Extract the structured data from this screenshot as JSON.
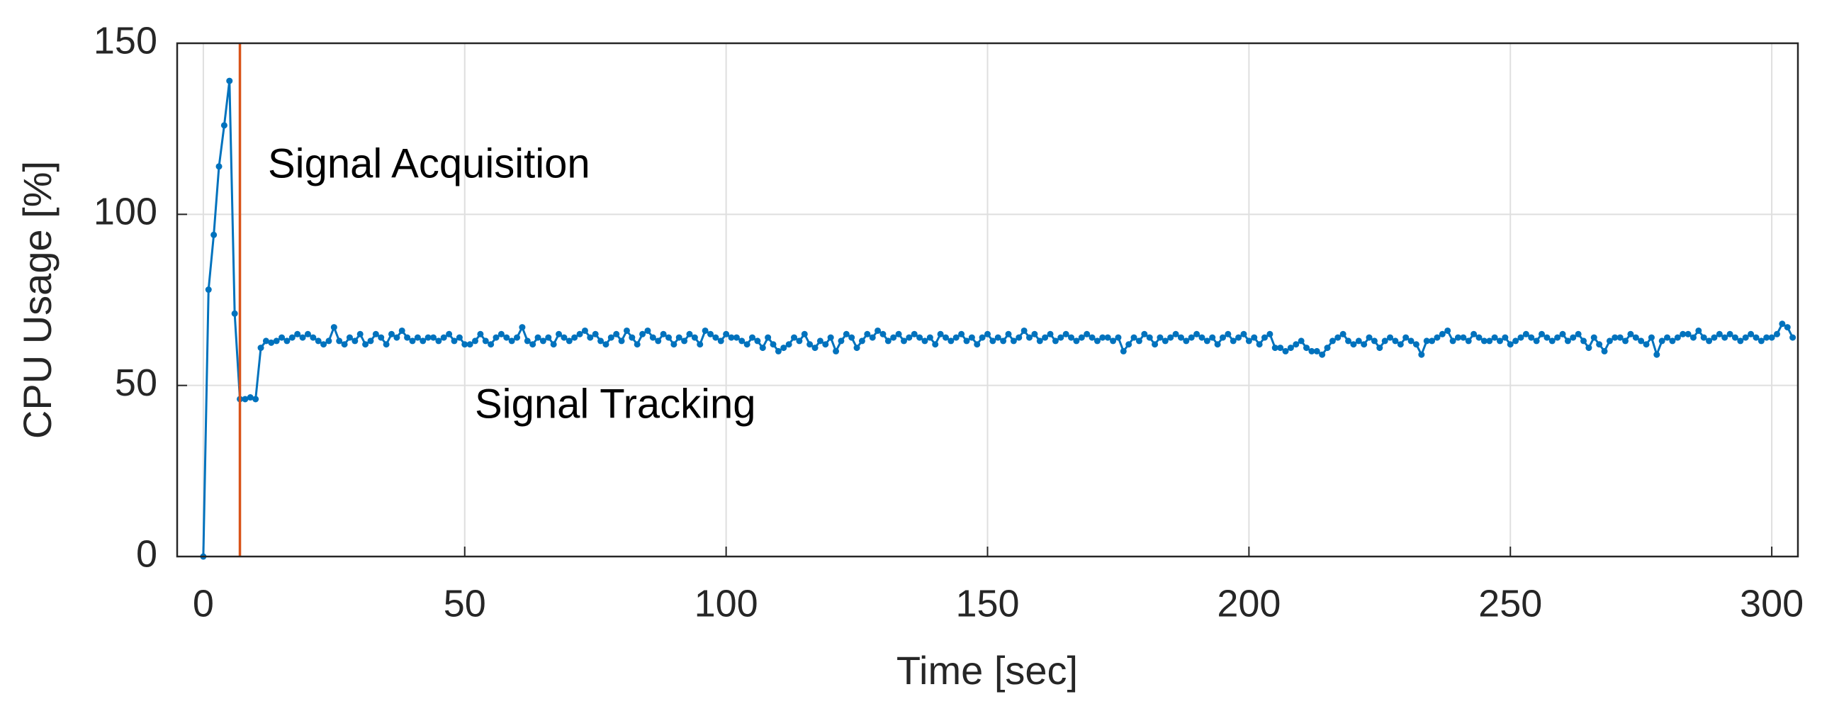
{
  "chart_data": {
    "type": "line",
    "xlabel": "Time [sec]",
    "ylabel": "CPU Usage [%]",
    "xlim": [
      -5,
      305
    ],
    "ylim": [
      0,
      150
    ],
    "xticks": [
      0,
      50,
      100,
      150,
      200,
      250,
      300
    ],
    "yticks": [
      0,
      50,
      100,
      150
    ],
    "grid": true,
    "vline": {
      "x": 7,
      "color": "#d95319"
    },
    "annotations": [
      {
        "text": "Signal Acquisition"
      },
      {
        "text": "Signal Tracking"
      }
    ],
    "series": [
      {
        "color": "#0072bd",
        "x": [
          0,
          1,
          2,
          3,
          4,
          5,
          6,
          7,
          8,
          9,
          10,
          11,
          12,
          13,
          14,
          15,
          16,
          17,
          18,
          19,
          20,
          21,
          22,
          23,
          24,
          25,
          26,
          27,
          28,
          29,
          30,
          31,
          32,
          33,
          34,
          35,
          36,
          37,
          38,
          39,
          40,
          41,
          42,
          43,
          44,
          45,
          46,
          47,
          48,
          49,
          50,
          51,
          52,
          53,
          54,
          55,
          56,
          57,
          58,
          59,
          60,
          61,
          62,
          63,
          64,
          65,
          66,
          67,
          68,
          69,
          70,
          71,
          72,
          73,
          74,
          75,
          76,
          77,
          78,
          79,
          80,
          81,
          82,
          83,
          84,
          85,
          86,
          87,
          88,
          89,
          90,
          91,
          92,
          93,
          94,
          95,
          96,
          97,
          98,
          99,
          100,
          101,
          102,
          103,
          104,
          105,
          106,
          107,
          108,
          109,
          110,
          111,
          112,
          113,
          114,
          115,
          116,
          117,
          118,
          119,
          120,
          121,
          122,
          123,
          124,
          125,
          126,
          127,
          128,
          129,
          130,
          131,
          132,
          133,
          134,
          135,
          136,
          137,
          138,
          139,
          140,
          141,
          142,
          143,
          144,
          145,
          146,
          147,
          148,
          149,
          150,
          151,
          152,
          153,
          154,
          155,
          156,
          157,
          158,
          159,
          160,
          161,
          162,
          163,
          164,
          165,
          166,
          167,
          168,
          169,
          170,
          171,
          172,
          173,
          174,
          175,
          176,
          177,
          178,
          179,
          180,
          181,
          182,
          183,
          184,
          185,
          186,
          187,
          188,
          189,
          190,
          191,
          192,
          193,
          194,
          195,
          196,
          197,
          198,
          199,
          200,
          201,
          202,
          203,
          204,
          205,
          206,
          207,
          208,
          209,
          210,
          211,
          212,
          213,
          214,
          215,
          216,
          217,
          218,
          219,
          220,
          221,
          222,
          223,
          224,
          225,
          226,
          227,
          228,
          229,
          230,
          231,
          232,
          233,
          234,
          235,
          236,
          237,
          238,
          239,
          240,
          241,
          242,
          243,
          244,
          245,
          246,
          247,
          248,
          249,
          250,
          251,
          252,
          253,
          254,
          255,
          256,
          257,
          258,
          259,
          260,
          261,
          262,
          263,
          264,
          265,
          266,
          267,
          268,
          269,
          270,
          271,
          272,
          273,
          274,
          275,
          276,
          277,
          278,
          279,
          280,
          281,
          282,
          283,
          284,
          285,
          286,
          287,
          288,
          289,
          290,
          291,
          292,
          293,
          294,
          295,
          296,
          297,
          298,
          299,
          300,
          301,
          302,
          303,
          304
        ],
        "values": [
          0,
          78,
          94,
          114,
          126,
          139,
          71,
          46,
          46,
          46.5,
          46,
          61,
          63,
          62.5,
          63,
          64,
          63,
          64,
          65,
          64,
          65,
          64,
          63,
          62,
          63,
          67,
          63,
          62,
          64,
          63,
          65,
          62,
          63,
          65,
          64,
          62,
          65,
          64,
          66,
          64,
          63,
          64,
          63,
          64,
          64,
          63,
          64,
          65,
          63,
          64,
          62,
          62,
          63,
          65,
          63,
          62,
          64,
          65,
          64,
          63,
          64,
          67,
          63,
          62,
          64,
          63,
          64,
          62,
          65,
          64,
          63,
          64,
          65,
          66,
          64,
          65,
          63,
          62,
          64,
          65,
          63,
          66,
          64,
          62,
          65,
          66,
          64,
          63,
          65,
          64,
          62,
          64,
          63,
          65,
          64,
          62,
          66,
          65,
          64,
          63,
          65,
          64,
          64,
          63,
          62,
          64,
          63,
          61,
          64,
          62,
          60,
          61,
          62,
          64,
          63,
          65,
          62,
          61,
          63,
          62,
          64,
          60,
          63,
          65,
          64,
          61,
          63,
          65,
          64,
          66,
          65,
          63,
          64,
          65,
          63,
          64,
          65,
          64,
          63,
          64,
          62,
          65,
          64,
          63,
          64,
          65,
          63,
          64,
          62,
          64,
          65,
          63,
          64,
          63,
          65,
          63,
          64,
          66,
          64,
          65,
          63,
          64,
          65,
          63,
          64,
          65,
          64,
          63,
          64,
          65,
          64,
          63,
          64,
          64,
          63,
          64,
          60,
          62,
          64,
          63,
          65,
          64,
          62,
          64,
          63,
          64,
          65,
          64,
          63,
          64,
          65,
          64,
          63,
          64,
          62,
          64,
          65,
          63,
          64,
          65,
          63,
          64,
          62,
          64,
          65,
          61,
          61,
          60,
          61,
          62,
          63,
          61,
          60,
          60,
          59,
          61,
          63,
          64,
          65,
          63,
          62,
          63,
          62,
          64,
          63,
          61,
          63,
          64,
          63,
          62,
          64,
          63,
          62,
          59,
          63,
          63,
          64,
          65,
          66,
          63,
          64,
          64,
          63,
          65,
          64,
          63,
          63,
          64,
          63,
          64,
          62,
          63,
          64,
          65,
          64,
          63,
          65,
          64,
          63,
          64,
          65,
          63,
          64,
          65,
          63,
          61,
          64,
          62,
          60,
          63,
          64,
          64,
          63,
          65,
          64,
          63,
          62,
          64,
          59,
          63,
          64,
          63,
          64,
          65,
          65,
          64,
          66,
          64,
          63,
          64,
          65,
          64,
          65,
          64,
          63,
          64,
          65,
          64,
          63,
          64,
          64,
          65,
          68,
          67,
          64
        ]
      }
    ]
  }
}
